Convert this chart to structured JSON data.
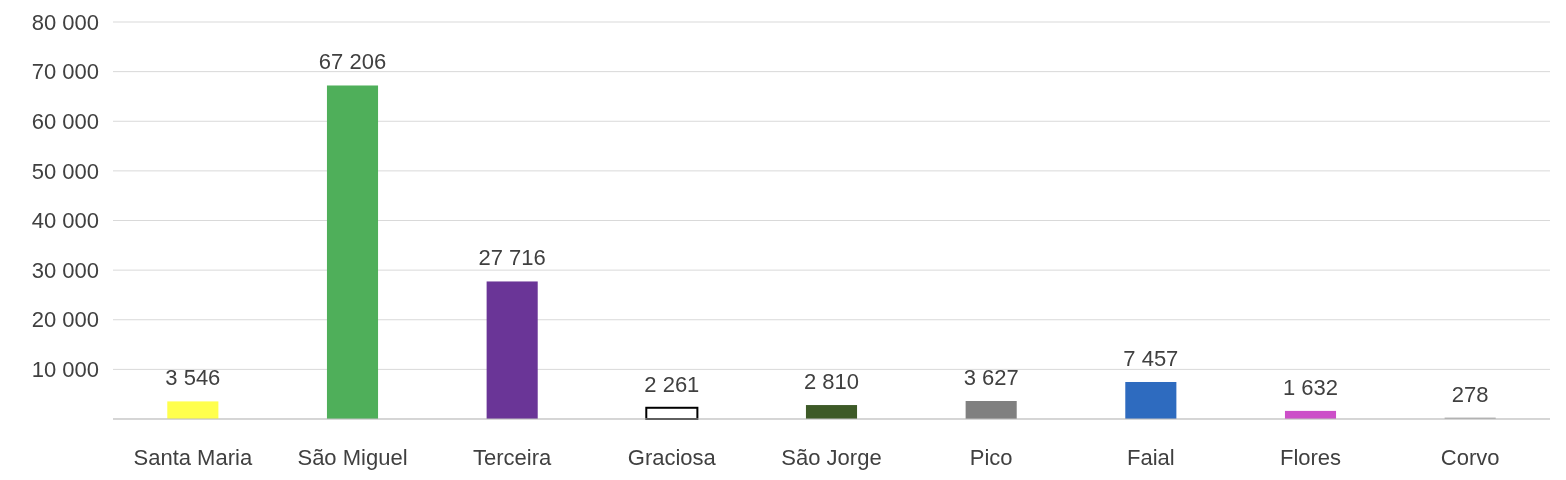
{
  "chart_data": {
    "type": "bar",
    "categories": [
      "Santa Maria",
      "São Miguel",
      "Terceira",
      "Graciosa",
      "São Jorge",
      "Pico",
      "Faial",
      "Flores",
      "Corvo"
    ],
    "values": [
      3546,
      67206,
      27716,
      2261,
      2810,
      3627,
      7457,
      1632,
      278
    ],
    "colors": [
      "#ffff4d",
      "#4faf5a",
      "#6a3597",
      "#ffffff",
      "#3d5a27",
      "#808080",
      "#2e6bbf",
      "#cc4fc8",
      "#a6a6a6"
    ],
    "value_labels": [
      "3 546",
      "67 206",
      "27 716",
      "2 261",
      "2 810",
      "3 627",
      "7 457",
      "1 632",
      "278"
    ],
    "ylim": [
      0,
      80000
    ],
    "yticks": [
      {
        "value": 0,
        "label": null
      },
      {
        "value": 10000,
        "label": "10 000"
      },
      {
        "value": 20000,
        "label": "20 000"
      },
      {
        "value": 30000,
        "label": "30 000"
      },
      {
        "value": 40000,
        "label": "40 000"
      },
      {
        "value": 50000,
        "label": "50 000"
      },
      {
        "value": 60000,
        "label": "60 000"
      },
      {
        "value": 70000,
        "label": "70 000"
      },
      {
        "value": 80000,
        "label": "80 000"
      }
    ],
    "grid": "y"
  }
}
